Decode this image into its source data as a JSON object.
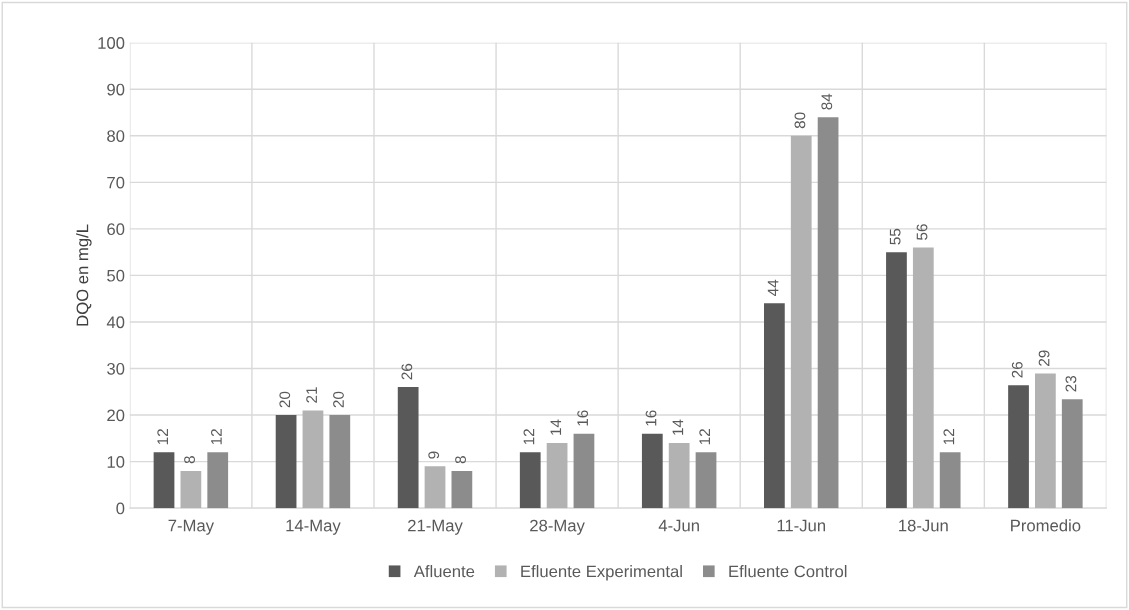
{
  "chart_data": {
    "type": "bar",
    "ylabel": "DQO en mg/L",
    "categories": [
      "7-May",
      "14-May",
      "21-May",
      "28-May",
      "4-Jun",
      "11-Jun",
      "18-Jun",
      "Promedio"
    ],
    "series": [
      {
        "name": "Afluente",
        "color": "#595959",
        "values": [
          12,
          20,
          26,
          12,
          16,
          44,
          55,
          26.4
        ],
        "value_labels": [
          "12",
          "20",
          "26",
          "12",
          "16",
          "44",
          "55",
          "26"
        ]
      },
      {
        "name": "Efluente Experimental",
        "color": "#b2b2b2",
        "values": [
          8,
          21,
          9,
          14,
          14,
          80,
          56,
          28.9
        ],
        "value_labels": [
          "8",
          "21",
          "9",
          "14",
          "14",
          "80",
          "56",
          "29"
        ]
      },
      {
        "name": "Efluente Control",
        "color": "#8c8c8c",
        "values": [
          12,
          20,
          8,
          16,
          12,
          84,
          12,
          23.4
        ],
        "value_labels": [
          "12",
          "20",
          "8",
          "16",
          "12",
          "84",
          "12",
          "23"
        ]
      }
    ],
    "ylim": [
      0,
      100
    ],
    "yticks": [
      0,
      10,
      20,
      30,
      40,
      50,
      60,
      70,
      80,
      90,
      100
    ],
    "grid": true,
    "legend": "bottom"
  }
}
